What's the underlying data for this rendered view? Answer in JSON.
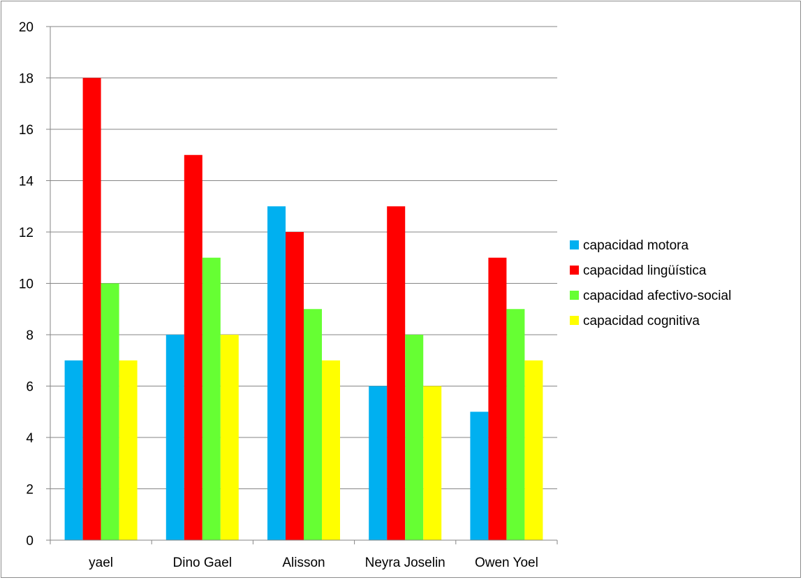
{
  "chart_data": {
    "type": "bar",
    "categories": [
      "yael",
      "Dino Gael",
      "Alisson",
      "Neyra Joselin",
      "Owen Yoel"
    ],
    "series": [
      {
        "name": "capacidad motora",
        "color": "#00b0f0",
        "values": [
          7,
          8,
          13,
          6,
          5
        ]
      },
      {
        "name": "capacidad lingüística",
        "color": "#ff0000",
        "values": [
          18,
          15,
          12,
          13,
          11
        ]
      },
      {
        "name": "capacidad afectivo-social",
        "color": "#66ff33",
        "values": [
          10,
          11,
          9,
          8,
          9
        ]
      },
      {
        "name": "capacidad cognitiva",
        "color": "#ffff00",
        "values": [
          7,
          8,
          7,
          6,
          7
        ]
      }
    ],
    "title": "",
    "xlabel": "",
    "ylabel": "",
    "ylim": [
      0,
      20
    ],
    "yticks": [
      0,
      2,
      4,
      6,
      8,
      10,
      12,
      14,
      16,
      18,
      20
    ],
    "grid": true,
    "legend": "right"
  }
}
